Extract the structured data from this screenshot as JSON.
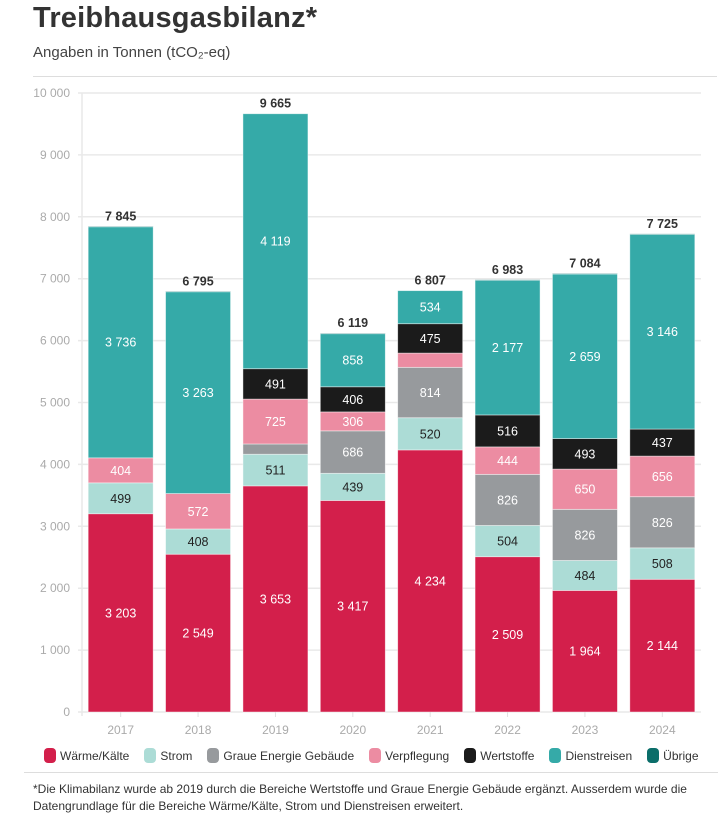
{
  "header": {
    "title": "Treibhausgasbilanz*",
    "subtitle": "Angaben in Tonnen (tCO₂-eq)"
  },
  "footnote": "*Die Klimabilanz wurde ab 2019 durch die Bereiche Wertstoffe und Graue Energie Gebäude ergänzt. Ausserdem wurde die Datengrundlage für die Bereiche Wärme/Kälte, Strom und Dienstreisen erweitert.",
  "chart_data": {
    "type": "bar",
    "stacked": true,
    "title": "Treibhausgasbilanz*",
    "subtitle": "Angaben in Tonnen (tCO₂-eq)",
    "xlabel": "",
    "ylabel": "",
    "ylim": [
      0,
      10000
    ],
    "yticks": [
      0,
      1000,
      2000,
      3000,
      4000,
      5000,
      6000,
      7000,
      8000,
      9000,
      10000
    ],
    "ytick_labels": [
      "0",
      "1 000",
      "2 000",
      "3 000",
      "4 000",
      "5 000",
      "6 000",
      "7 000",
      "8 000",
      "9 000",
      "10 000"
    ],
    "grid": true,
    "legend_position": "bottom",
    "categories": [
      "2017",
      "2018",
      "2019",
      "2020",
      "2021",
      "2022",
      "2023",
      "2024"
    ],
    "totals": [
      7845,
      6795,
      9665,
      6119,
      6807,
      6983,
      7084,
      7725
    ],
    "total_labels": [
      "7 845",
      "6 795",
      "9 665",
      "6 119",
      "6 807",
      "6 983",
      "7 084",
      "7 725"
    ],
    "series": [
      {
        "name": "Wärme/Kälte",
        "color": "#d31f4b",
        "label_color": "#ffffff",
        "values": [
          3203,
          2549,
          3653,
          3417,
          4234,
          2509,
          1964,
          2144
        ],
        "labels": [
          "3 203",
          "2 549",
          "3 653",
          "3 417",
          "4 234",
          "2 509",
          "1 964",
          "2 144"
        ]
      },
      {
        "name": "Strom",
        "color": "#acdcd6",
        "label_color": "#222222",
        "values": [
          499,
          408,
          511,
          439,
          520,
          504,
          484,
          508
        ],
        "labels": [
          "499",
          "408",
          "511",
          "439",
          "520",
          "504",
          "484",
          "508"
        ]
      },
      {
        "name": "Graue Energie Gebäude",
        "color": "#979a9d",
        "label_color": "#ffffff",
        "values": [
          0,
          0,
          166,
          686,
          814,
          826,
          826,
          826
        ],
        "labels": [
          "",
          "",
          "",
          "686",
          "814",
          "826",
          "826",
          "826"
        ]
      },
      {
        "name": "Verpflegung",
        "color": "#ec8ca2",
        "label_color": "#ffffff",
        "values": [
          404,
          572,
          725,
          306,
          230,
          444,
          650,
          656
        ],
        "labels": [
          "404",
          "572",
          "725",
          "306",
          "",
          "444",
          "650",
          "656"
        ]
      },
      {
        "name": "Wertstoffe",
        "color": "#1b1b1b",
        "label_color": "#ffffff",
        "values": [
          0,
          0,
          491,
          406,
          475,
          516,
          493,
          437
        ],
        "labels": [
          "",
          "",
          "491",
          "406",
          "475",
          "516",
          "493",
          "437"
        ]
      },
      {
        "name": "Dienstreisen",
        "color": "#35aaa8",
        "label_color": "#ffffff",
        "values": [
          3736,
          3263,
          4119,
          858,
          534,
          2177,
          2659,
          3146
        ],
        "labels": [
          "3 736",
          "3 263",
          "4 119",
          "858",
          "534",
          "2 177",
          "2 659",
          "3 146"
        ]
      },
      {
        "name": "Übrige",
        "color": "#0b6e6a",
        "label_color": "#ffffff",
        "values": [
          3,
          3,
          0,
          7,
          0,
          7,
          8,
          8
        ],
        "labels": [
          "",
          "",
          "",
          "",
          "",
          "",
          "",
          ""
        ]
      }
    ]
  }
}
